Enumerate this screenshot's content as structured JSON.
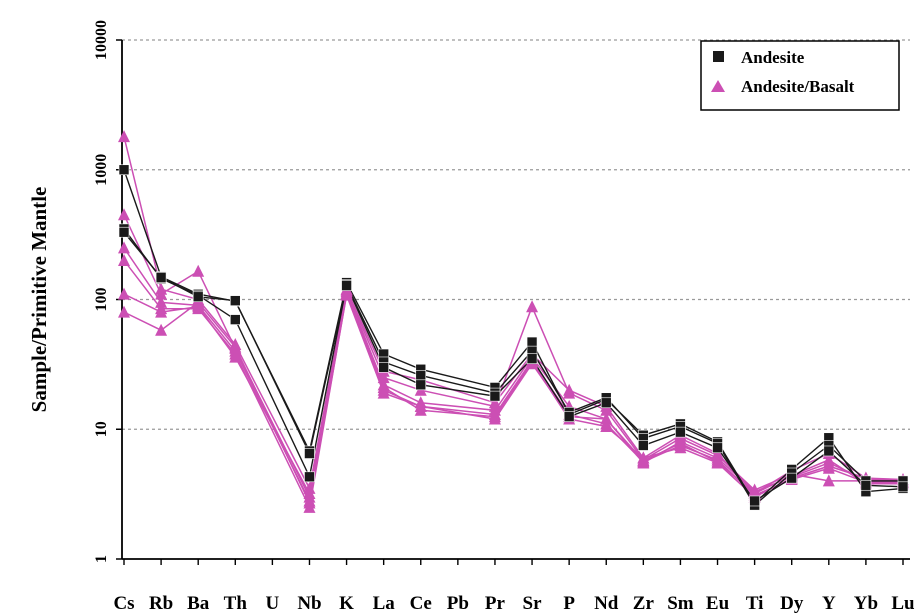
{
  "chart_data": {
    "type": "line",
    "ylabel": "Sample/Primitive Mantle",
    "xlabel": "",
    "yscale": "log",
    "ylim": [
      1,
      10000
    ],
    "yticks": [
      1,
      10,
      100,
      1000,
      10000
    ],
    "grid": "horizontal dashed",
    "legend_position": "top-right",
    "categories": [
      "Cs",
      "Rb",
      "Ba",
      "Th",
      "U",
      "Nb",
      "K",
      "La",
      "Ce",
      "Pb",
      "Pr",
      "Sr",
      "P",
      "Nd",
      "Zr",
      "Sm",
      "Eu",
      "Ti",
      "Dy",
      "Y",
      "Yb",
      "Lu"
    ],
    "legend": [
      {
        "label": "Andesite",
        "marker": "square",
        "color": "#1a1a1a"
      },
      {
        "label": "Andesite/Basalt",
        "marker": "triangle",
        "color": "#cc4fb4"
      }
    ],
    "colors": {
      "andesite": "#1a1a1a",
      "andesite_basalt": "#cc4fb4"
    },
    "series": [
      {
        "group": "Andesite",
        "values": {
          "Cs": 1000,
          "Rb": 150,
          "Ba": 110,
          "Th": 97,
          "Nb": 6.8,
          "K": 135,
          "La": 38,
          "Ce": 29,
          "Pr": 21,
          "Sr": 47,
          "P": 13,
          "Nd": 17,
          "Zr": 9,
          "Sm": 11,
          "Eu": 8,
          "Ti": 2.7,
          "Dy": 4.9,
          "Y": 8.6,
          "Yb": 3.3,
          "Lu": 3.5
        }
      },
      {
        "group": "Andesite",
        "values": {
          "Cs": 350,
          "Rb": 145,
          "Ba": 108,
          "Th": 70,
          "Nb": 4.3,
          "K": 130,
          "La": 33,
          "Ce": 26,
          "Pr": 19,
          "Sr": 40,
          "P": 13.5,
          "Nd": 17.5,
          "Zr": 8.5,
          "Sm": 10.5,
          "Eu": 7.8,
          "Ti": 2.6,
          "Dy": 4.6,
          "Y": 7.5,
          "Yb": 4.0,
          "Lu": 4.0
        }
      },
      {
        "group": "Andesite",
        "values": {
          "Cs": 330,
          "Rb": 148,
          "Ba": 105,
          "Th": 98,
          "Nb": 6.5,
          "K": 128,
          "La": 30,
          "Ce": 22,
          "Pr": 18,
          "Sr": 35,
          "P": 12.5,
          "Nd": 16,
          "Zr": 7.5,
          "Sm": 9.5,
          "Eu": 7.2,
          "Ti": 2.8,
          "Dy": 4.2,
          "Y": 6.8,
          "Yb": 3.7,
          "Lu": 3.6
        }
      },
      {
        "group": "Andesite/Basalt",
        "values": {
          "Cs": 1800,
          "Rb": 120,
          "Ba": 100,
          "Th": 45,
          "Nb": 3.5,
          "K": 120,
          "La": 28,
          "Ce": 24,
          "Pr": 16,
          "Sr": 38,
          "P": 20,
          "Nd": 15,
          "Zr": 6,
          "Sm": 9,
          "Eu": 6.5,
          "Ti": 3.2,
          "Dy": 4.8,
          "Y": 6.5,
          "Yb": 4.2,
          "Lu": 4.1
        }
      },
      {
        "group": "Andesite/Basalt",
        "values": {
          "Cs": 450,
          "Rb": 110,
          "Ba": 165,
          "Th": 42,
          "Nb": 3.0,
          "K": 118,
          "La": 25,
          "Ce": 20,
          "Pr": 15,
          "Sr": 88,
          "P": 19,
          "Nd": 14,
          "Zr": 5.8,
          "Sm": 8.5,
          "Eu": 6.3,
          "Ti": 3.4,
          "Dy": 4.5,
          "Y": 4.0,
          "Yb": 4.0,
          "Lu": 3.9
        }
      },
      {
        "group": "Andesite/Basalt",
        "values": {
          "Cs": 250,
          "Rb": 95,
          "Ba": 90,
          "Th": 40,
          "Nb": 2.8,
          "K": 115,
          "La": 22,
          "Ce": 16,
          "Pr": 14,
          "Sr": 36,
          "P": 15,
          "Nd": 12,
          "Zr": 5.5,
          "Sm": 8,
          "Eu": 6,
          "Ti": 3.3,
          "Dy": 4.3,
          "Y": 5.5,
          "Yb": 4.1,
          "Lu": 4.0
        }
      },
      {
        "group": "Andesite/Basalt",
        "values": {
          "Cs": 200,
          "Rb": 85,
          "Ba": 85,
          "Th": 38,
          "Nb": 2.5,
          "K": 110,
          "La": 20,
          "Ce": 15,
          "Pr": 13,
          "Sr": 34,
          "P": 13,
          "Nd": 11,
          "Zr": 5.6,
          "Sm": 7.5,
          "Eu": 5.8,
          "Ti": 3.1,
          "Dy": 4.1,
          "Y": 5.0,
          "Yb": 3.9,
          "Lu": 3.9
        }
      },
      {
        "group": "Andesite/Basalt",
        "values": {
          "Cs": 110,
          "Rb": 80,
          "Ba": 88,
          "Th": 36,
          "Nb": 3.2,
          "K": 112,
          "La": 21,
          "Ce": 14,
          "Pr": 12.5,
          "Sr": 33,
          "P": 12,
          "Nd": 10.5,
          "Zr": 6,
          "Sm": 7.2,
          "Eu": 5.5,
          "Ti": 3.0,
          "Dy": 4.2,
          "Y": 5.2,
          "Yb": 4.2,
          "Lu": 4.0
        }
      },
      {
        "group": "Andesite/Basalt",
        "values": {
          "Cs": 80,
          "Rb": 58,
          "Ba": 95,
          "Th": 43,
          "Nb": 2.7,
          "K": 108,
          "La": 19,
          "Ce": 15,
          "Pr": 12,
          "Sr": 32,
          "P": 12.5,
          "Nd": 12,
          "Zr": 5.7,
          "Sm": 7.8,
          "Eu": 5.6,
          "Ti": 3.2,
          "Dy": 4.4,
          "Y": 5.8,
          "Yb": 3.8,
          "Lu": 3.8
        }
      }
    ]
  }
}
